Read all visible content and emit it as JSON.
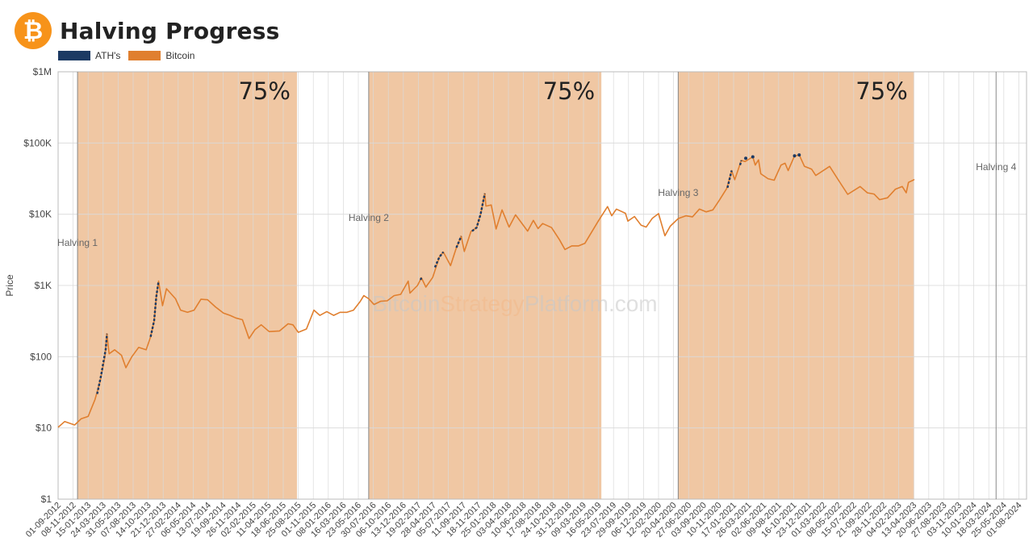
{
  "header": {
    "title": "Halving Progress",
    "logo_glyph": "₿",
    "logo_icon": "bitcoin-logo-icon"
  },
  "legend": [
    {
      "label": "ATH's",
      "color": "#1c3a63"
    },
    {
      "label": "Bitcoin",
      "color": "#e07f2f"
    }
  ],
  "watermark": {
    "parts": [
      "Bitcoin",
      "Strategy",
      "Platform",
      ".com"
    ]
  },
  "chart_data": {
    "type": "line",
    "title": "Halving Progress",
    "ylabel": "Price",
    "yscale": "log",
    "ylim": [
      1,
      1000000
    ],
    "xlim": [
      "2012-09-01",
      "2024-09-05"
    ],
    "y_ticks": [
      {
        "value": 1,
        "label": "$1"
      },
      {
        "value": 10,
        "label": "$10"
      },
      {
        "value": 100,
        "label": "$100"
      },
      {
        "value": 1000,
        "label": "$1K"
      },
      {
        "value": 10000,
        "label": "$10K"
      },
      {
        "value": 100000,
        "label": "$100K"
      },
      {
        "value": 1000000,
        "label": "$1M"
      }
    ],
    "x_tick_labels": [
      "01-09-2012",
      "08-11-2012",
      "15-01-2013",
      "24-03-2013",
      "31-05-2013",
      "07-08-2013",
      "14-10-2013",
      "21-12-2013",
      "27-02-2014",
      "06-05-2014",
      "13-07-2014",
      "19-09-2014",
      "26-11-2014",
      "02-02-2015",
      "11-04-2015",
      "18-06-2015",
      "25-08-2015",
      "01-11-2015",
      "08-01-2016",
      "16-03-2016",
      "23-05-2016",
      "30-07-2016",
      "06-10-2016",
      "13-12-2016",
      "19-02-2017",
      "28-04-2017",
      "05-07-2017",
      "11-09-2017",
      "18-11-2017",
      "25-01-2018",
      "03-04-2018",
      "10-06-2018",
      "17-08-2018",
      "24-10-2018",
      "31-12-2018",
      "09-03-2019",
      "16-05-2019",
      "23-07-2019",
      "29-09-2019",
      "06-12-2019",
      "12-02-2020",
      "20-04-2020",
      "27-06-2020",
      "03-09-2020",
      "10-11-2020",
      "17-01-2021",
      "26-03-2021",
      "02-06-2021",
      "09-08-2021",
      "16-10-2021",
      "23-12-2021",
      "01-03-2022",
      "08-05-2022",
      "15-07-2022",
      "21-09-2022",
      "28-11-2022",
      "04-02-2023",
      "13-04-2023",
      "20-06-2023",
      "27-08-2023",
      "03-11-2023",
      "10-01-2024",
      "18-03-2024",
      "25-05-2024",
      "01-08-2024"
    ],
    "halvings": [
      {
        "label": "Halving 1",
        "date": "2012-11-28"
      },
      {
        "label": "Halving 2",
        "date": "2016-07-09"
      },
      {
        "label": "Halving 3",
        "date": "2020-05-11"
      },
      {
        "label": "Halving 4",
        "date": "2024-04-20"
      }
    ],
    "shaded_regions": [
      {
        "start": "2012-11-28",
        "end": "2015-08-19",
        "label": "75%"
      },
      {
        "start": "2016-07-09",
        "end": "2019-05-29",
        "label": "75%"
      },
      {
        "start": "2020-05-11",
        "end": "2023-04-15",
        "label": "75%"
      }
    ],
    "series": [
      {
        "name": "Bitcoin",
        "color": "#e07f2f",
        "points": [
          [
            "2012-09-01",
            10.2
          ],
          [
            "2012-10-01",
            12.3
          ],
          [
            "2012-11-15",
            11
          ],
          [
            "2012-12-15",
            13.5
          ],
          [
            "2013-01-15",
            14.5
          ],
          [
            "2013-02-15",
            25
          ],
          [
            "2013-03-10",
            45
          ],
          [
            "2013-04-01",
            100
          ],
          [
            "2013-04-10",
            210
          ],
          [
            "2013-04-20",
            110
          ],
          [
            "2013-05-15",
            125
          ],
          [
            "2013-06-15",
            105
          ],
          [
            "2013-07-05",
            70
          ],
          [
            "2013-08-01",
            100
          ],
          [
            "2013-09-01",
            135
          ],
          [
            "2013-10-05",
            125
          ],
          [
            "2013-10-25",
            190
          ],
          [
            "2013-11-10",
            320
          ],
          [
            "2013-11-20",
            700
          ],
          [
            "2013-11-30",
            1150
          ],
          [
            "2013-12-18",
            520
          ],
          [
            "2014-01-05",
            900
          ],
          [
            "2014-02-15",
            650
          ],
          [
            "2014-03-10",
            450
          ],
          [
            "2014-04-10",
            420
          ],
          [
            "2014-05-10",
            450
          ],
          [
            "2014-06-10",
            640
          ],
          [
            "2014-07-10",
            630
          ],
          [
            "2014-08-15",
            500
          ],
          [
            "2014-09-20",
            410
          ],
          [
            "2014-10-20",
            380
          ],
          [
            "2014-11-15",
            350
          ],
          [
            "2014-12-15",
            330
          ],
          [
            "2015-01-14",
            180
          ],
          [
            "2015-02-10",
            240
          ],
          [
            "2015-03-10",
            280
          ],
          [
            "2015-04-15",
            225
          ],
          [
            "2015-06-01",
            230
          ],
          [
            "2015-07-10",
            290
          ],
          [
            "2015-08-01",
            280
          ],
          [
            "2015-08-25",
            220
          ],
          [
            "2015-10-01",
            245
          ],
          [
            "2015-11-04",
            450
          ],
          [
            "2015-12-01",
            380
          ],
          [
            "2016-01-01",
            430
          ],
          [
            "2016-02-01",
            380
          ],
          [
            "2016-03-01",
            420
          ],
          [
            "2016-04-01",
            420
          ],
          [
            "2016-05-01",
            450
          ],
          [
            "2016-06-01",
            600
          ],
          [
            "2016-06-17",
            720
          ],
          [
            "2016-07-09",
            650
          ],
          [
            "2016-08-02",
            540
          ],
          [
            "2016-09-01",
            600
          ],
          [
            "2016-10-01",
            610
          ],
          [
            "2016-11-01",
            720
          ],
          [
            "2016-12-01",
            750
          ],
          [
            "2017-01-04",
            1150
          ],
          [
            "2017-01-12",
            780
          ],
          [
            "2017-02-15",
            1000
          ],
          [
            "2017-03-05",
            1280
          ],
          [
            "2017-03-25",
            950
          ],
          [
            "2017-04-25",
            1300
          ],
          [
            "2017-05-25",
            2500
          ],
          [
            "2017-06-12",
            2950
          ],
          [
            "2017-07-15",
            1900
          ],
          [
            "2017-08-10",
            3400
          ],
          [
            "2017-09-01",
            4900
          ],
          [
            "2017-09-15",
            3000
          ],
          [
            "2017-10-15",
            5700
          ],
          [
            "2017-11-10",
            6500
          ],
          [
            "2017-11-28",
            10000
          ],
          [
            "2017-12-17",
            19500
          ],
          [
            "2017-12-22",
            13000
          ],
          [
            "2018-01-15",
            13500
          ],
          [
            "2018-02-06",
            6200
          ],
          [
            "2018-03-05",
            11500
          ],
          [
            "2018-04-06",
            6600
          ],
          [
            "2018-05-05",
            9800
          ],
          [
            "2018-06-29",
            5800
          ],
          [
            "2018-07-25",
            8200
          ],
          [
            "2018-08-15",
            6300
          ],
          [
            "2018-09-05",
            7400
          ],
          [
            "2018-10-15",
            6500
          ],
          [
            "2018-11-20",
            4400
          ],
          [
            "2018-12-15",
            3200
          ],
          [
            "2019-01-15",
            3600
          ],
          [
            "2019-02-15",
            3600
          ],
          [
            "2019-03-15",
            3900
          ],
          [
            "2019-04-05",
            5000
          ],
          [
            "2019-05-15",
            8000
          ],
          [
            "2019-06-26",
            12800
          ],
          [
            "2019-07-15",
            9500
          ],
          [
            "2019-08-05",
            11800
          ],
          [
            "2019-09-15",
            10300
          ],
          [
            "2019-09-26",
            8000
          ],
          [
            "2019-10-26",
            9300
          ],
          [
            "2019-11-25",
            7000
          ],
          [
            "2019-12-18",
            6600
          ],
          [
            "2020-01-15",
            8800
          ],
          [
            "2020-02-12",
            10200
          ],
          [
            "2020-03-12",
            5000
          ],
          [
            "2020-04-05",
            6800
          ],
          [
            "2020-05-11",
            8700
          ],
          [
            "2020-06-15",
            9500
          ],
          [
            "2020-07-15",
            9200
          ],
          [
            "2020-08-15",
            11800
          ],
          [
            "2020-09-15",
            10800
          ],
          [
            "2020-10-15",
            11500
          ],
          [
            "2020-11-15",
            16000
          ],
          [
            "2020-12-17",
            23000
          ],
          [
            "2021-01-08",
            41000
          ],
          [
            "2021-01-22",
            30500
          ],
          [
            "2021-02-21",
            57000
          ],
          [
            "2021-03-10",
            55000
          ],
          [
            "2021-04-14",
            64000
          ],
          [
            "2021-04-25",
            49000
          ],
          [
            "2021-05-10",
            58000
          ],
          [
            "2021-05-20",
            37000
          ],
          [
            "2021-06-22",
            31500
          ],
          [
            "2021-07-20",
            30000
          ],
          [
            "2021-08-20",
            49000
          ],
          [
            "2021-09-07",
            52000
          ],
          [
            "2021-09-21",
            41000
          ],
          [
            "2021-10-20",
            66000
          ],
          [
            "2021-11-10",
            68000
          ],
          [
            "2021-12-04",
            47000
          ],
          [
            "2022-01-05",
            43000
          ],
          [
            "2022-01-24",
            35000
          ],
          [
            "2022-03-28",
            47000
          ],
          [
            "2022-05-12",
            28500
          ],
          [
            "2022-06-18",
            19000
          ],
          [
            "2022-08-13",
            24500
          ],
          [
            "2022-09-15",
            20000
          ],
          [
            "2022-10-15",
            19200
          ],
          [
            "2022-11-09",
            16000
          ],
          [
            "2022-12-15",
            17000
          ],
          [
            "2023-01-20",
            22500
          ],
          [
            "2023-02-20",
            24500
          ],
          [
            "2023-03-10",
            20000
          ],
          [
            "2023-03-20",
            28000
          ],
          [
            "2023-04-14",
            30500
          ],
          [
            "2023-04-15",
            30200
          ]
        ]
      },
      {
        "name": "ATH's",
        "color": "#1c3a63",
        "segments": [
          [
            [
              "2013-02-25",
              30
            ],
            [
              "2013-03-15",
              55
            ],
            [
              "2013-04-05",
              130
            ],
            [
              "2013-04-10",
              210
            ]
          ],
          [
            [
              "2013-10-25",
              190
            ],
            [
              "2013-11-10",
              320
            ],
            [
              "2013-11-20",
              700
            ],
            [
              "2013-11-30",
              1150
            ]
          ],
          [
            [
              "2017-03-01",
              1200
            ],
            [
              "2017-03-05",
              1280
            ]
          ],
          [
            [
              "2017-05-05",
              1800
            ],
            [
              "2017-05-25",
              2500
            ],
            [
              "2017-06-12",
              2950
            ]
          ],
          [
            [
              "2017-08-10",
              3400
            ],
            [
              "2017-09-01",
              4900
            ]
          ],
          [
            [
              "2017-10-20",
              5800
            ],
            [
              "2017-11-10",
              6500
            ],
            [
              "2017-11-28",
              10000
            ],
            [
              "2017-12-17",
              19500
            ]
          ],
          [
            [
              "2020-12-20",
              23500
            ],
            [
              "2021-01-08",
              41000
            ]
          ],
          [
            [
              "2021-02-15",
              49000
            ],
            [
              "2021-02-21",
              57000
            ]
          ],
          [
            [
              "2021-03-13",
              61000
            ]
          ],
          [
            [
              "2021-04-14",
              64000
            ]
          ],
          [
            [
              "2021-10-20",
              66000
            ]
          ],
          [
            [
              "2021-11-10",
              68000
            ]
          ]
        ]
      }
    ]
  }
}
